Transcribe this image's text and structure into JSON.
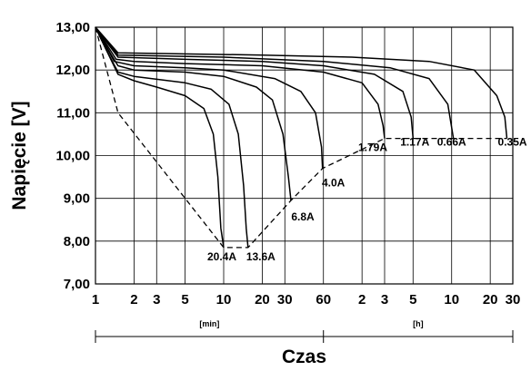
{
  "chart_data": {
    "type": "line",
    "title": "",
    "xlabel": "Czas",
    "ylabel": "Napięcie  [V]",
    "x_scale": "log",
    "x_unit": "minutes",
    "x_range_min": [
      1,
      1800
    ],
    "ylim": [
      7,
      13
    ],
    "grid": true,
    "legend": "none",
    "y_ticks": [
      {
        "value": 7,
        "label": "7,00"
      },
      {
        "value": 8,
        "label": "8,00"
      },
      {
        "value": 9,
        "label": "9,00"
      },
      {
        "value": 10,
        "label": "10,00"
      },
      {
        "value": 11,
        "label": "11,00"
      },
      {
        "value": 12,
        "label": "12,00"
      },
      {
        "value": 13,
        "label": "13,00"
      }
    ],
    "x_ticks": [
      {
        "minutes": 1,
        "label": "1"
      },
      {
        "minutes": 2,
        "label": "2"
      },
      {
        "minutes": 3,
        "label": "3"
      },
      {
        "minutes": 5,
        "label": "5"
      },
      {
        "minutes": 10,
        "label": "10"
      },
      {
        "minutes": 20,
        "label": "20"
      },
      {
        "minutes": 30,
        "label": "30"
      },
      {
        "minutes": 60,
        "label": "60"
      },
      {
        "minutes": 120,
        "label": "2"
      },
      {
        "minutes": 180,
        "label": "3"
      },
      {
        "minutes": 300,
        "label": "5"
      },
      {
        "minutes": 600,
        "label": "10"
      },
      {
        "minutes": 1200,
        "label": "20"
      },
      {
        "minutes": 1800,
        "label": "30"
      }
    ],
    "x_unit_labels": [
      {
        "label": "[min]",
        "from_minutes": 1,
        "to_minutes": 60
      },
      {
        "label": "[h]",
        "from_minutes": 60,
        "to_minutes": 1800
      }
    ],
    "series": [
      {
        "label": "20.4A",
        "color": "#000000",
        "points": [
          [
            1,
            13.0
          ],
          [
            1.2,
            12.5
          ],
          [
            1.5,
            11.9
          ],
          [
            2,
            11.75
          ],
          [
            3,
            11.6
          ],
          [
            5,
            11.4
          ],
          [
            7,
            11.1
          ],
          [
            8.3,
            10.5
          ],
          [
            9,
            9.5
          ],
          [
            9.5,
            8.3
          ],
          [
            10,
            7.85
          ]
        ]
      },
      {
        "label": "13.6A",
        "color": "#000000",
        "points": [
          [
            1,
            13.0
          ],
          [
            1.2,
            12.5
          ],
          [
            1.5,
            11.95
          ],
          [
            2,
            11.85
          ],
          [
            5,
            11.7
          ],
          [
            8,
            11.55
          ],
          [
            11,
            11.2
          ],
          [
            13,
            10.5
          ],
          [
            14.3,
            9.3
          ],
          [
            15,
            8.3
          ],
          [
            15.5,
            7.85
          ]
        ]
      },
      {
        "label": "6.8A",
        "color": "#000000",
        "points": [
          [
            1,
            13.0
          ],
          [
            1.3,
            12.4
          ],
          [
            1.5,
            12.1
          ],
          [
            2,
            12.0
          ],
          [
            5,
            11.95
          ],
          [
            10,
            11.85
          ],
          [
            18,
            11.6
          ],
          [
            24,
            11.3
          ],
          [
            29,
            10.5
          ],
          [
            32,
            9.5
          ],
          [
            33.5,
            8.95
          ]
        ]
      },
      {
        "label": "4.0A",
        "color": "#000000",
        "points": [
          [
            1,
            13.0
          ],
          [
            1.4,
            12.2
          ],
          [
            2,
            12.1
          ],
          [
            5,
            12.05
          ],
          [
            10,
            12.0
          ],
          [
            25,
            11.8
          ],
          [
            40,
            11.5
          ],
          [
            52,
            11.0
          ],
          [
            58,
            10.2
          ],
          [
            59,
            9.7
          ]
        ]
      },
      {
        "label": "1.79A",
        "color": "#000000",
        "points": [
          [
            1,
            13.0
          ],
          [
            1.45,
            12.25
          ],
          [
            2,
            12.2
          ],
          [
            5,
            12.15
          ],
          [
            20,
            12.1
          ],
          [
            60,
            11.95
          ],
          [
            120,
            11.7
          ],
          [
            160,
            11.2
          ],
          [
            175,
            10.7
          ],
          [
            180,
            10.4
          ]
        ]
      },
      {
        "label": "1.17A",
        "color": "#000000",
        "points": [
          [
            1,
            13.0
          ],
          [
            1.5,
            12.3
          ],
          [
            5,
            12.25
          ],
          [
            20,
            12.2
          ],
          [
            60,
            12.1
          ],
          [
            150,
            11.9
          ],
          [
            250,
            11.5
          ],
          [
            290,
            10.9
          ],
          [
            300,
            10.4
          ]
        ]
      },
      {
        "label": "0.66A",
        "color": "#000000",
        "points": [
          [
            1,
            13.0
          ],
          [
            1.5,
            12.35
          ],
          [
            10,
            12.3
          ],
          [
            60,
            12.2
          ],
          [
            200,
            12.05
          ],
          [
            400,
            11.8
          ],
          [
            560,
            11.2
          ],
          [
            620,
            10.4
          ]
        ]
      },
      {
        "label": "0.35A",
        "color": "#000000",
        "points": [
          [
            1,
            13.0
          ],
          [
            1.5,
            12.4
          ],
          [
            20,
            12.35
          ],
          [
            100,
            12.3
          ],
          [
            400,
            12.2
          ],
          [
            900,
            12.0
          ],
          [
            1350,
            11.4
          ],
          [
            1560,
            10.9
          ],
          [
            1620,
            10.4
          ]
        ]
      }
    ],
    "end_voltage_curve": {
      "style": "dashed",
      "points": [
        [
          1,
          13.0
        ],
        [
          1.5,
          11.0
        ],
        [
          10,
          7.85
        ],
        [
          15.5,
          7.85
        ],
        [
          33.5,
          8.95
        ],
        [
          59,
          9.7
        ],
        [
          180,
          10.4
        ],
        [
          1620,
          10.4
        ]
      ]
    }
  }
}
